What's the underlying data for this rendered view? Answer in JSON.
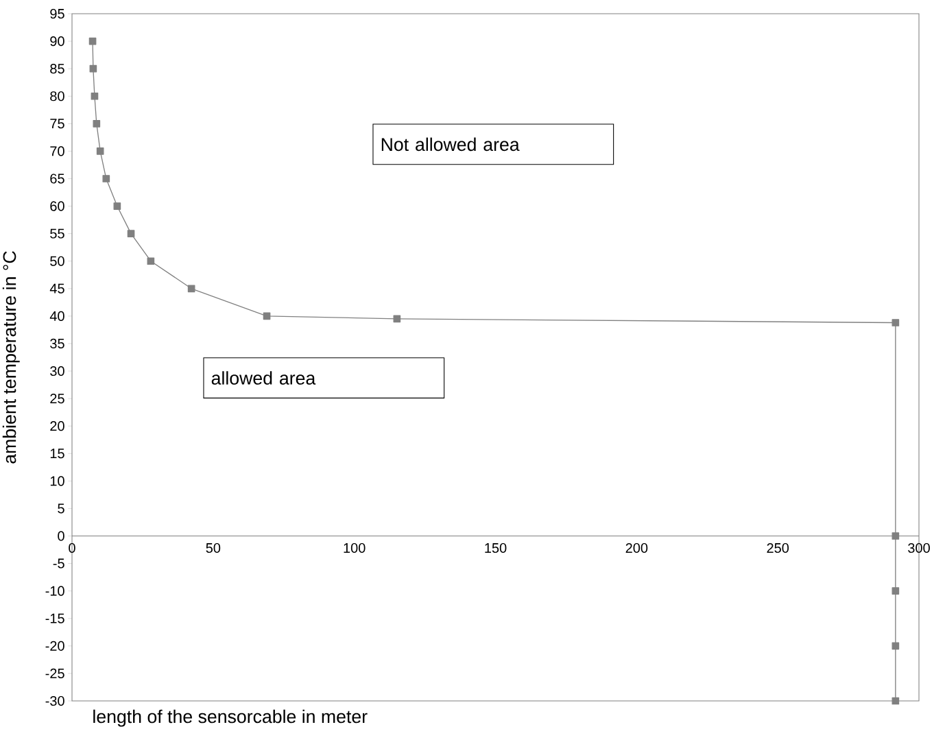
{
  "chart_data": {
    "type": "line",
    "xlabel": "length of the sensorcable in meter",
    "ylabel": "ambient temperature in °C",
    "x": [
      7.3,
      7.5,
      8.0,
      8.7,
      10.0,
      12.1,
      16.0,
      20.9,
      27.9,
      42.3,
      69.0,
      115.1,
      291.7,
      291.7,
      291.7,
      291.7,
      291.7
    ],
    "series": [
      {
        "color": "#808080",
        "values": [
          90,
          85,
          80,
          75,
          70,
          65,
          60,
          55,
          50,
          45,
          40,
          39.5,
          38.8,
          0,
          -10,
          -20,
          -30
        ]
      }
    ],
    "marker": "square",
    "line_style": "solid",
    "xlim": [
      0,
      300
    ],
    "xticks": [
      0,
      50,
      100,
      150,
      200,
      250,
      300
    ],
    "ylim": [
      -30,
      95
    ],
    "yticks": [
      -30,
      -25,
      -20,
      -15,
      -10,
      -5,
      0,
      5,
      10,
      15,
      20,
      25,
      30,
      35,
      40,
      45,
      50,
      55,
      60,
      65,
      70,
      75,
      80,
      85,
      90,
      95
    ],
    "annotations": [
      "Not allowed area",
      "allowed area"
    ]
  }
}
